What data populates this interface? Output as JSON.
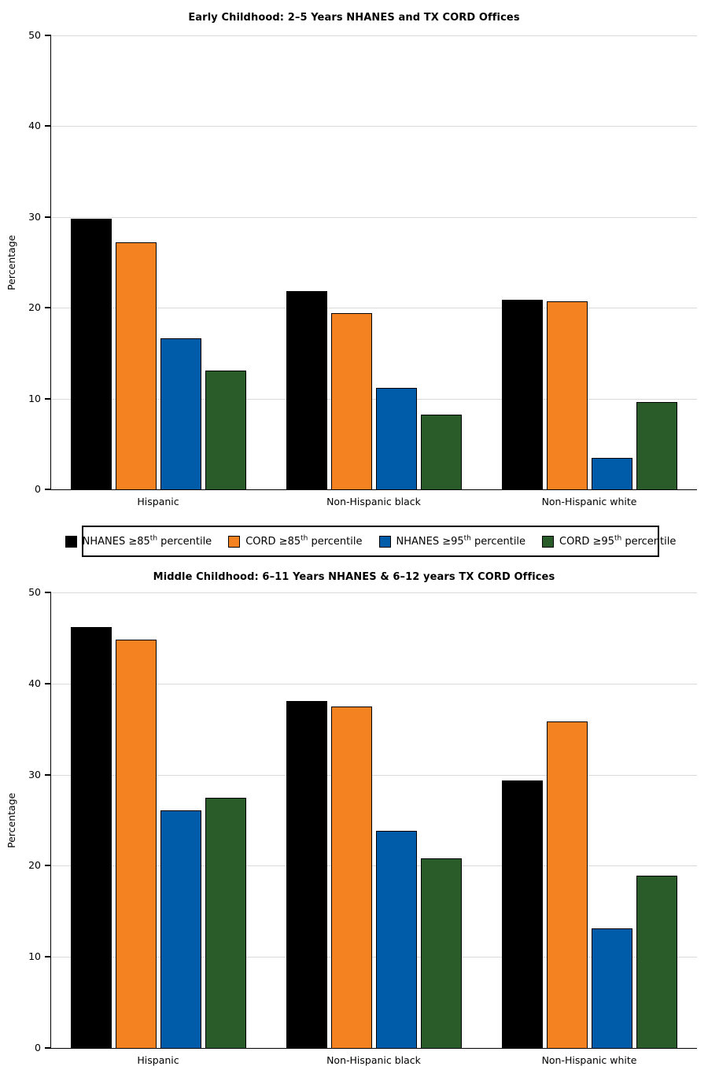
{
  "colors": {
    "nhanes_85": "#000000",
    "cord_85": "#F58220",
    "nhanes_95": "#005CA9",
    "cord_95": "#2A5C2A",
    "gridline": "#D9D9D9"
  },
  "legend": {
    "items": [
      {
        "pre": "NHANES ≥85",
        "sup": "th",
        "post": " percentile",
        "color": "#000000"
      },
      {
        "pre": "CORD ≥85",
        "sup": "th",
        "post": " percentile",
        "color": "#F58220"
      },
      {
        "pre": "NHANES ≥95",
        "sup": "th",
        "post": " percentile",
        "color": "#005CA9"
      },
      {
        "pre": "CORD ≥95",
        "sup": "th",
        "post": " percentile",
        "color": "#2A5C2A"
      }
    ]
  },
  "chart_data": [
    {
      "type": "bar",
      "title": "Early Childhood: 2–5 Years NHANES and TX CORD Offices",
      "xlabel": "",
      "ylabel": "Percentage",
      "ylim": [
        0,
        50
      ],
      "yticks": [
        0,
        10,
        20,
        30,
        40,
        50
      ],
      "grid": true,
      "legend_position": "below",
      "categories": [
        "Hispanic",
        "Non-Hispanic black",
        "Non-Hispanic white"
      ],
      "series": [
        {
          "name": "NHANES ≥85th percentile",
          "color": "#000000",
          "values": [
            29.8,
            21.8,
            20.9
          ]
        },
        {
          "name": "CORD ≥85th percentile",
          "color": "#F58220",
          "values": [
            27.2,
            19.4,
            20.7
          ]
        },
        {
          "name": "NHANES ≥95th percentile",
          "color": "#005CA9",
          "values": [
            16.6,
            11.2,
            3.5
          ]
        },
        {
          "name": "CORD ≥95th percentile",
          "color": "#2A5C2A",
          "values": [
            13.1,
            8.2,
            9.6
          ]
        }
      ]
    },
    {
      "type": "bar",
      "title": "Middle Childhood: 6–11 Years NHANES & 6–12 years TX CORD Offices",
      "xlabel": "",
      "ylabel": "Percentage",
      "ylim": [
        0,
        50
      ],
      "yticks": [
        0,
        10,
        20,
        30,
        40,
        50
      ],
      "grid": true,
      "categories": [
        "Hispanic",
        "Non-Hispanic black",
        "Non-Hispanic white"
      ],
      "series": [
        {
          "name": "NHANES ≥85th percentile",
          "color": "#000000",
          "values": [
            46.2,
            38.1,
            29.4
          ]
        },
        {
          "name": "CORD ≥85th percentile",
          "color": "#F58220",
          "values": [
            44.8,
            37.5,
            35.8
          ]
        },
        {
          "name": "NHANES ≥95th percentile",
          "color": "#005CA9",
          "values": [
            26.1,
            23.8,
            13.1
          ]
        },
        {
          "name": "CORD ≥95th percentile",
          "color": "#2A5C2A",
          "values": [
            27.5,
            20.8,
            18.9
          ]
        }
      ]
    }
  ]
}
